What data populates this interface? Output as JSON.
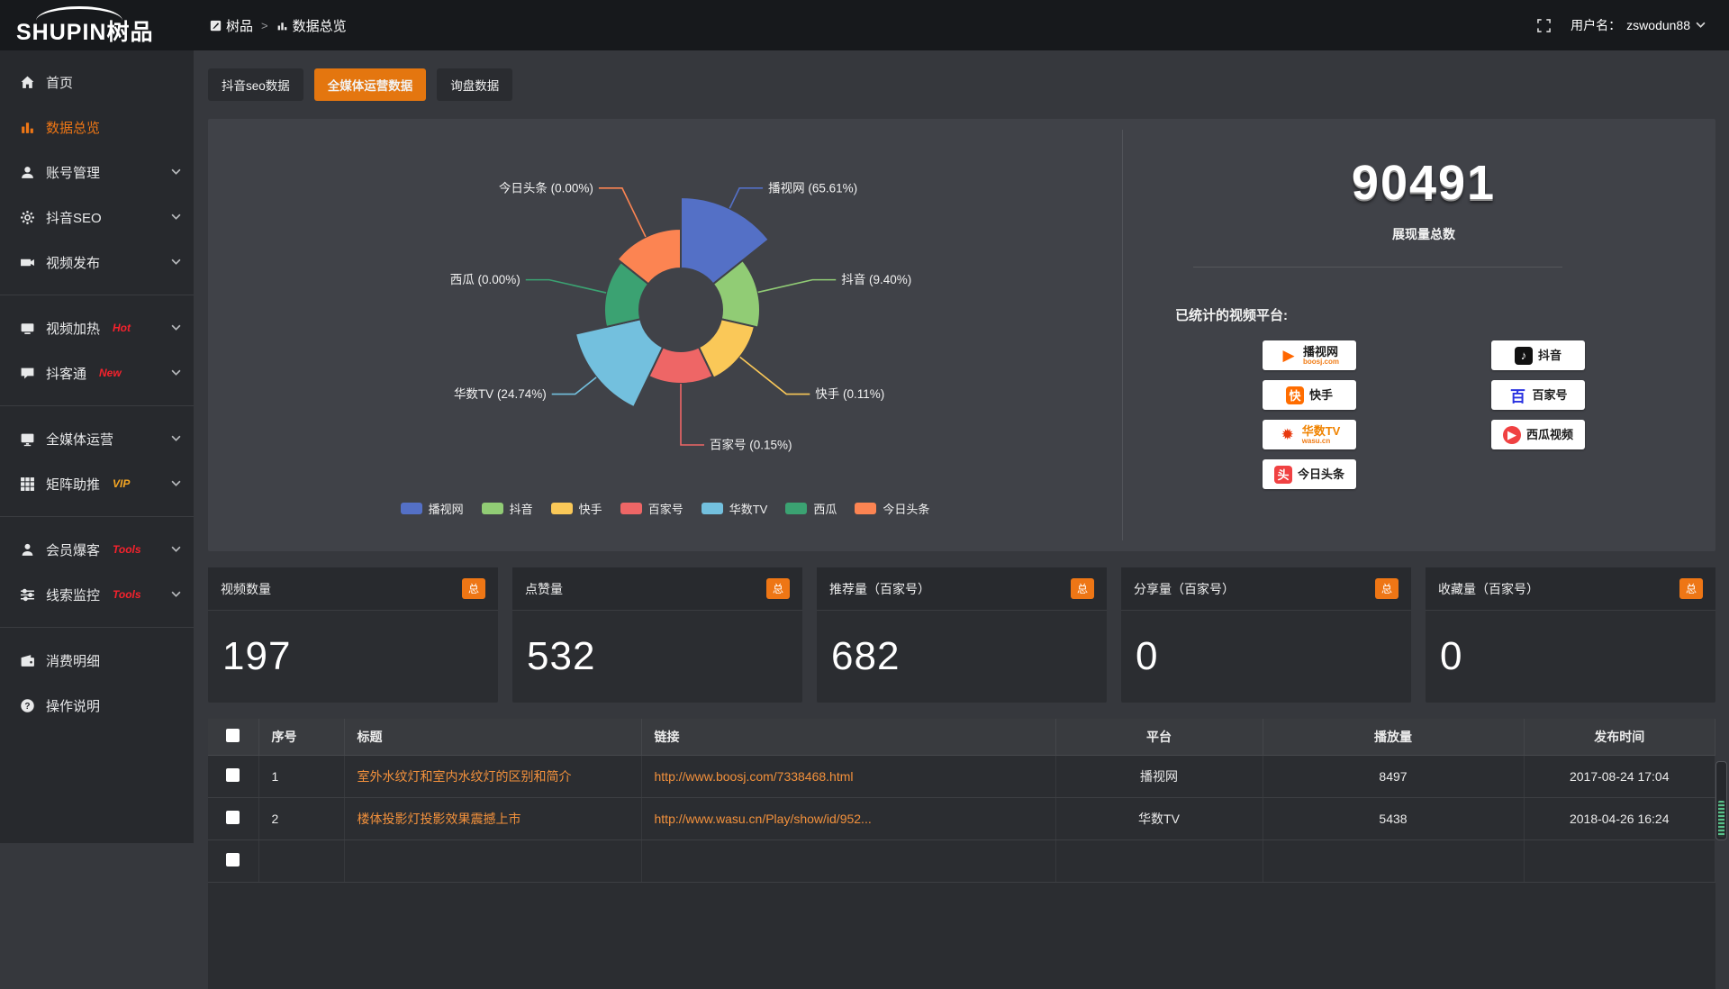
{
  "header": {
    "logo_en": "SHUPIN",
    "logo_cn": "树品",
    "breadcrumb_root": "树品",
    "breadcrumb_sep": ">",
    "breadcrumb_current": "数据总览",
    "username_label": "用户名：",
    "username": "zswodun88"
  },
  "sidebar": {
    "items": [
      {
        "label": "首页",
        "icon": "home",
        "active": false,
        "submenu": false,
        "badge": "",
        "badge_color": "",
        "divider_after": false
      },
      {
        "label": "数据总览",
        "icon": "chart",
        "active": true,
        "submenu": false,
        "badge": "",
        "badge_color": "",
        "divider_after": false
      },
      {
        "label": "账号管理",
        "icon": "user",
        "active": false,
        "submenu": true,
        "badge": "",
        "badge_color": "",
        "divider_after": false
      },
      {
        "label": "抖音SEO",
        "icon": "gear",
        "active": false,
        "submenu": true,
        "badge": "",
        "badge_color": "",
        "divider_after": false
      },
      {
        "label": "视频发布",
        "icon": "video",
        "active": false,
        "submenu": true,
        "badge": "",
        "badge_color": "",
        "divider_after": true
      },
      {
        "label": "视频加热",
        "icon": "screen",
        "active": false,
        "submenu": true,
        "badge": "Hot",
        "badge_color": "#f5222d",
        "divider_after": false
      },
      {
        "label": "抖客通",
        "icon": "bubble",
        "active": false,
        "submenu": true,
        "badge": "New",
        "badge_color": "#f5222d",
        "divider_after": true
      },
      {
        "label": "全媒体运营",
        "icon": "monitor",
        "active": false,
        "submenu": true,
        "badge": "",
        "badge_color": "",
        "divider_after": false
      },
      {
        "label": "矩阵助推",
        "icon": "grid",
        "active": false,
        "submenu": true,
        "badge": "VIP",
        "badge_color": "#f5a623",
        "divider_after": true
      },
      {
        "label": "会员爆客",
        "icon": "person",
        "active": false,
        "submenu": true,
        "badge": "Tools",
        "badge_color": "#f5222d",
        "divider_after": false
      },
      {
        "label": "线索监控",
        "icon": "sliders",
        "active": false,
        "submenu": true,
        "badge": "Tools",
        "badge_color": "#f5222d",
        "divider_after": true
      },
      {
        "label": "消费明细",
        "icon": "wallet",
        "active": false,
        "submenu": false,
        "badge": "",
        "badge_color": "",
        "divider_after": false
      },
      {
        "label": "操作说明",
        "icon": "help",
        "active": false,
        "submenu": false,
        "badge": "",
        "badge_color": "",
        "divider_after": false
      }
    ]
  },
  "tabs": [
    {
      "label": "抖音seo数据",
      "active": false
    },
    {
      "label": "全媒体运营数据",
      "active": true
    },
    {
      "label": "询盘数据",
      "active": false
    }
  ],
  "chart_data": {
    "type": "pie",
    "variant": "nightingale-rose",
    "title": "",
    "legend_position": "bottom",
    "label_format": "{name} ({pct}%)",
    "series": [
      {
        "name": "播视网",
        "pct": "65.61",
        "color": "#5470c6",
        "display_radius": 125
      },
      {
        "name": "抖音",
        "pct": "9.40",
        "color": "#91cc75",
        "display_radius": 88
      },
      {
        "name": "快手",
        "pct": "0.11",
        "color": "#fac858",
        "display_radius": 84
      },
      {
        "name": "百家号",
        "pct": "0.15",
        "color": "#ee6666",
        "display_radius": 82
      },
      {
        "name": "华数TV",
        "pct": "24.74",
        "color": "#73c0de",
        "display_radius": 120
      },
      {
        "name": "西瓜",
        "pct": "0.00",
        "color": "#3ba272",
        "display_radius": 85
      },
      {
        "name": "今日头条",
        "pct": "0.00",
        "color": "#fc8452",
        "display_radius": 90
      }
    ],
    "inner_radius": 46
  },
  "summary": {
    "total_value": "90491",
    "total_label": "展现量总数",
    "platforms_label": "已统计的视频平台:",
    "platform_columns": [
      [
        {
          "name": "播视网",
          "sub": "boosj.com",
          "glyph": "▶",
          "glyph_bg": "",
          "glyph_color": "#f60",
          "round": true
        },
        {
          "name": "快手",
          "sub": "",
          "glyph": "快",
          "glyph_bg": "#ff6d00",
          "glyph_color": "#fff",
          "round": false
        },
        {
          "name": "华数TV",
          "sub": "wasu.cn",
          "glyph": "✹",
          "glyph_bg": "",
          "glyph_color": "#e8380d",
          "round": false,
          "name_color": "#f08300"
        },
        {
          "name": "今日头条",
          "sub": "",
          "glyph": "头",
          "glyph_bg": "#f04142",
          "glyph_color": "#fff",
          "round": false
        }
      ],
      [
        {
          "name": "抖音",
          "sub": "",
          "glyph": "♪",
          "glyph_bg": "#111",
          "glyph_color": "#fff",
          "round": false
        },
        {
          "name": "百家号",
          "sub": "",
          "glyph": "百",
          "glyph_bg": "",
          "glyph_color": "#2932e1",
          "round": false
        },
        {
          "name": "西瓜视频",
          "sub": "",
          "glyph": "▶",
          "glyph_bg": "#f04142",
          "glyph_color": "#fff",
          "round": true
        }
      ]
    ]
  },
  "stat_cards": [
    {
      "title": "视频数量",
      "badge": "总",
      "value": "197"
    },
    {
      "title": "点赞量",
      "badge": "总",
      "value": "532"
    },
    {
      "title": "推荐量（百家号）",
      "badge": "总",
      "value": "682"
    },
    {
      "title": "分享量（百家号）",
      "badge": "总",
      "value": "0"
    },
    {
      "title": "收藏量（百家号）",
      "badge": "总",
      "value": "0"
    }
  ],
  "table": {
    "headers": [
      "序号",
      "标题",
      "链接",
      "平台",
      "播放量",
      "发布时间"
    ],
    "rows": [
      {
        "num": "1",
        "title": "室外水纹灯和室内水纹灯的区别和简介",
        "link": "http://www.boosj.com/7338468.html",
        "platform": "播视网",
        "plays": "8497",
        "time": "2017-08-24 17:04"
      },
      {
        "num": "2",
        "title": "楼体投影灯投影效果震撼上市",
        "link": "http://www.wasu.cn/Play/show/id/952...",
        "platform": "华数TV",
        "plays": "5438",
        "time": "2018-04-26 16:24"
      }
    ]
  },
  "colors": {
    "accent": "#ee7615",
    "active_tab": "#e4760f",
    "link_text": "#f3913c",
    "badge_hot": "#f5222d",
    "badge_vip": "#f5a623"
  }
}
